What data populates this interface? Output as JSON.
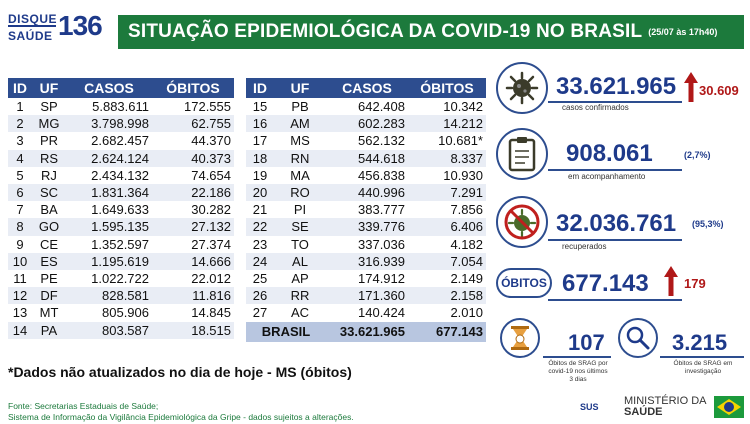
{
  "logo": {
    "line1": "DISQUE",
    "line2": "SAÚDE",
    "number": "136"
  },
  "header": {
    "title": "SITUAÇÃO EPIDEMIOLÓGICA DA COVID-19 NO BRASIL",
    "date": "(25/07 às 17h40)"
  },
  "columns": {
    "id": "ID",
    "uf": "UF",
    "casos": "CASOS",
    "obitos": "ÓBITOS"
  },
  "left_rows": [
    {
      "id": "1",
      "uf": "SP",
      "casos": "5.883.611",
      "obitos": "172.555"
    },
    {
      "id": "2",
      "uf": "MG",
      "casos": "3.798.998",
      "obitos": "62.755"
    },
    {
      "id": "3",
      "uf": "PR",
      "casos": "2.682.457",
      "obitos": "44.370"
    },
    {
      "id": "4",
      "uf": "RS",
      "casos": "2.624.124",
      "obitos": "40.373"
    },
    {
      "id": "5",
      "uf": "RJ",
      "casos": "2.434.132",
      "obitos": "74.654"
    },
    {
      "id": "6",
      "uf": "SC",
      "casos": "1.831.364",
      "obitos": "22.186"
    },
    {
      "id": "7",
      "uf": "BA",
      "casos": "1.649.633",
      "obitos": "30.282"
    },
    {
      "id": "8",
      "uf": "GO",
      "casos": "1.595.135",
      "obitos": "27.132"
    },
    {
      "id": "9",
      "uf": "CE",
      "casos": "1.352.597",
      "obitos": "27.374"
    },
    {
      "id": "10",
      "uf": "ES",
      "casos": "1.195.619",
      "obitos": "14.666"
    },
    {
      "id": "11",
      "uf": "PE",
      "casos": "1.022.722",
      "obitos": "22.012"
    },
    {
      "id": "12",
      "uf": "DF",
      "casos": "828.581",
      "obitos": "11.816"
    },
    {
      "id": "13",
      "uf": "MT",
      "casos": "805.906",
      "obitos": "14.845"
    },
    {
      "id": "14",
      "uf": "PA",
      "casos": "803.587",
      "obitos": "18.515"
    }
  ],
  "right_rows": [
    {
      "id": "15",
      "uf": "PB",
      "casos": "642.408",
      "obitos": "10.342"
    },
    {
      "id": "16",
      "uf": "AM",
      "casos": "602.283",
      "obitos": "14.212"
    },
    {
      "id": "17",
      "uf": "MS",
      "casos": "562.132",
      "obitos": "10.681*"
    },
    {
      "id": "18",
      "uf": "RN",
      "casos": "544.618",
      "obitos": "8.337"
    },
    {
      "id": "19",
      "uf": "MA",
      "casos": "456.838",
      "obitos": "10.930"
    },
    {
      "id": "20",
      "uf": "RO",
      "casos": "440.996",
      "obitos": "7.291"
    },
    {
      "id": "21",
      "uf": "PI",
      "casos": "383.777",
      "obitos": "7.856"
    },
    {
      "id": "22",
      "uf": "SE",
      "casos": "339.776",
      "obitos": "6.406"
    },
    {
      "id": "23",
      "uf": "TO",
      "casos": "337.036",
      "obitos": "4.182"
    },
    {
      "id": "24",
      "uf": "AL",
      "casos": "316.939",
      "obitos": "7.054"
    },
    {
      "id": "25",
      "uf": "AP",
      "casos": "174.912",
      "obitos": "2.149"
    },
    {
      "id": "26",
      "uf": "RR",
      "casos": "171.360",
      "obitos": "2.158"
    },
    {
      "id": "27",
      "uf": "AC",
      "casos": "140.424",
      "obitos": "2.010"
    }
  ],
  "total_row": {
    "label": "BRASIL",
    "casos": "33.621.965",
    "obitos": "677.143"
  },
  "note": "*Dados não atualizados no dia de hoje - MS (óbitos)",
  "source": {
    "line1": "Fonte: Secretarias Estaduais de Saúde;",
    "line2": "Sistema de Informação da Vigilância Epidemiológica da Gripe - dados sujeitos a alterações."
  },
  "stats": {
    "confirmados": {
      "value": "33.621.965",
      "delta": "30.609",
      "label": "casos confirmados",
      "icon": "virus-icon"
    },
    "acompanhamento": {
      "value": "908.061",
      "pct": "(2,7%)",
      "label": "em acompanhamento",
      "icon": "clipboard-icon"
    },
    "recuperados": {
      "value": "32.036.761",
      "pct": "(95,3%)",
      "label": "recuperados",
      "icon": "no-virus-icon"
    },
    "obitos": {
      "badge": "ÓBITOS",
      "value": "677.143",
      "delta": "179"
    },
    "srag": {
      "value": "107",
      "label1": "Óbitos de SRAG por",
      "label2": "covid-19 nos últimos",
      "label3": "3 dias"
    },
    "investigacao": {
      "value": "3.215",
      "label1": "Óbitos de SRAG em",
      "label2": "investigação"
    }
  },
  "footer_logos": {
    "sus": "SUS",
    "ministerio": "MINISTÉRIO DA",
    "saude": "SAÚDE"
  },
  "colors": {
    "green": "#1c7a3c",
    "navy": "#2d4d8f",
    "red": "#b01818"
  }
}
